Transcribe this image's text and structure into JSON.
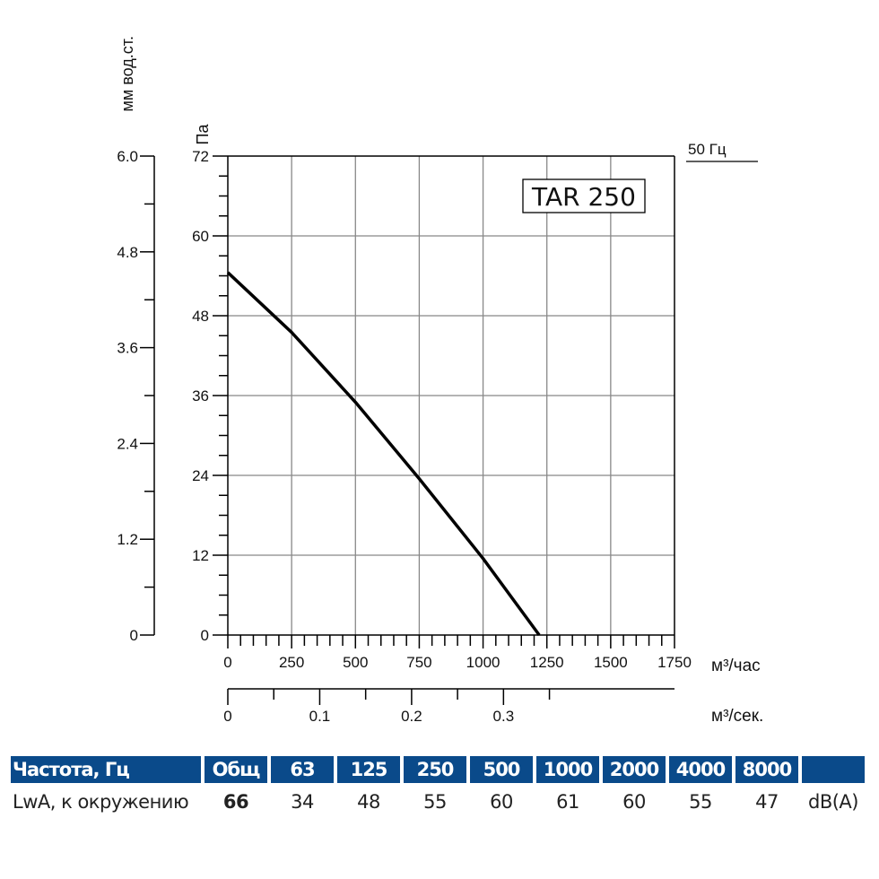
{
  "chart_data": {
    "type": "line",
    "title": "TAR 250",
    "annotation": "50 Гц",
    "xlabel": "м³/час",
    "x2label": "м³/сек.",
    "ylabel": "Па",
    "y2label": "мм вод.ст.",
    "xlim": [
      0,
      1750
    ],
    "ylim": [
      0,
      72
    ],
    "x2lim": [
      0,
      0.4861
    ],
    "y2lim": [
      0,
      6.0
    ],
    "grid": true,
    "xticks": [
      "0",
      "250",
      "500",
      "750",
      "1000",
      "1250",
      "1500",
      "1750"
    ],
    "yticks": [
      "0",
      "12",
      "24",
      "36",
      "48",
      "60",
      "72"
    ],
    "x2ticks": [
      "0",
      "0.1",
      "0.2",
      "0.3"
    ],
    "y2ticks": [
      "0",
      "1.2",
      "2.4",
      "3.6",
      "4.8",
      "6.0"
    ],
    "series": [
      {
        "x": [
          0,
          250,
          500,
          750,
          1000,
          1220
        ],
        "y": [
          54.5,
          45.5,
          35,
          23.5,
          11.5,
          0
        ]
      }
    ],
    "line_color": "#000000"
  },
  "table": {
    "header": [
      "Частота, Гц",
      "Общ",
      "63",
      "125",
      "250",
      "500",
      "1000",
      "2000",
      "4000",
      "8000",
      ""
    ],
    "values": [
      "LwA, к окружению",
      "66",
      "34",
      "48",
      "55",
      "60",
      "61",
      "60",
      "55",
      "47",
      "dB(A)"
    ],
    "header_color": "#0a4a8a"
  }
}
